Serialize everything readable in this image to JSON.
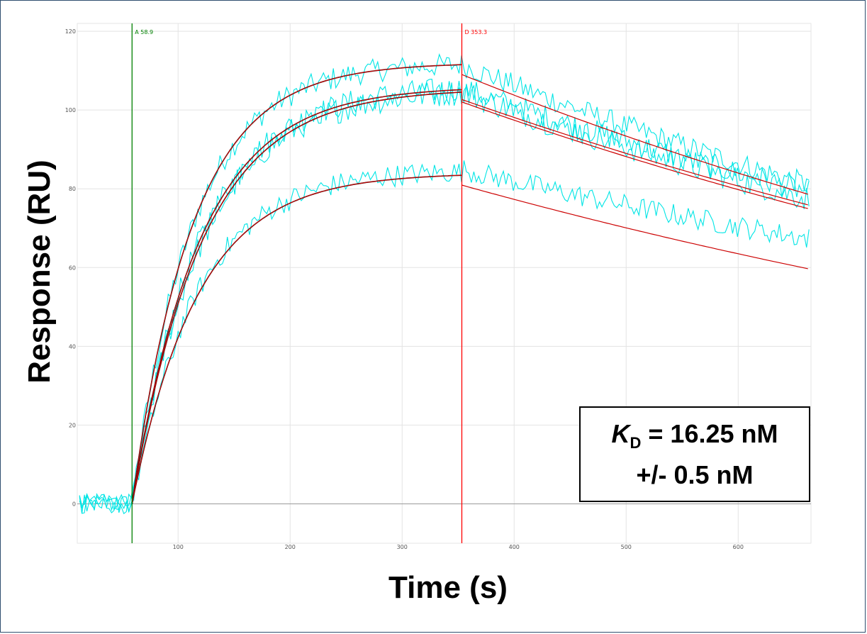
{
  "chart_data": {
    "type": "line",
    "xlabel": "Time (s)",
    "ylabel": "Response (RU)",
    "xlim": [
      10,
      665
    ],
    "ylim": [
      -10,
      122
    ],
    "x_ticks": [
      100,
      200,
      300,
      400,
      500,
      600
    ],
    "y_ticks": [
      0,
      20,
      40,
      60,
      80,
      100,
      120
    ],
    "grid": true,
    "colors": {
      "data": "#00e5e5",
      "fit": "#cc0000",
      "fit_dark": "#1a1a1a",
      "marker_a": "#008000",
      "marker_d": "#ff0000"
    },
    "markers": [
      {
        "label": "A 58.9",
        "x": 58.9,
        "color": "#008000"
      },
      {
        "label": "D 353.3",
        "x": 353.3,
        "color": "#ff0000"
      }
    ],
    "baseline_x": [
      10,
      58.9
    ],
    "association_x": [
      58.9,
      353.3
    ],
    "dissociation_x": [
      353.3,
      665
    ],
    "series": [
      {
        "plateau": 112.0,
        "k_obs": 0.0185,
        "k_off": 0.00103,
        "noise": 3.0,
        "offset": 0.0
      },
      {
        "plateau": 106.0,
        "k_obs": 0.0165,
        "k_off": 0.00095,
        "noise": 3.2,
        "offset": 0.5
      },
      {
        "plateau": 105.5,
        "k_obs": 0.016,
        "k_off": 0.00097,
        "noise": 3.4,
        "offset": 0.0
      },
      {
        "plateau": 84.0,
        "k_obs": 0.017,
        "k_off": 0.00095,
        "noise": 2.8,
        "offset": 3.0
      }
    ],
    "annotation": {
      "k": "K",
      "sub": "D",
      "line1_rest": " = 16.25 nM",
      "line2": "+/- 0.5 nM"
    }
  }
}
